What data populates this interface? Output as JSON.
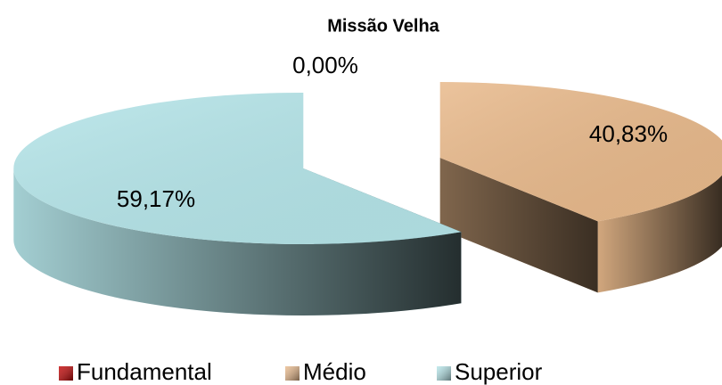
{
  "chart_data": {
    "type": "pie",
    "title": "Missão Velha",
    "categories": [
      "Fundamental",
      "Médio",
      "Superior"
    ],
    "values": [
      0,
      40.83,
      59.17
    ],
    "value_labels": [
      "0,00%",
      "40,83%",
      "59,17%"
    ],
    "colors": [
      "#c00000",
      "#e8b98b",
      "#b5e5e9"
    ]
  }
}
